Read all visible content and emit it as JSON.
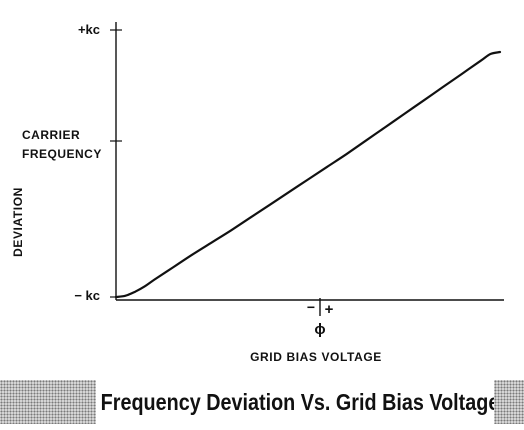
{
  "chart_data": {
    "type": "line",
    "title": "Frequency Deviation Vs. Grid Bias Voltage",
    "xlabel": "GRID BIAS VOLTAGE",
    "ylabel": "DEVIATION",
    "x_range": [
      -1,
      1
    ],
    "y_range": [
      -1,
      1
    ],
    "x_center_label": "ϕ",
    "x_minus_label": "−",
    "x_plus_label": "+",
    "y_tick_labels": {
      "top": "+kc",
      "middle_line1": "CARRIER",
      "middle_line2": "FREQUENCY",
      "bottom": "− kc"
    },
    "grid": false,
    "series": [
      {
        "x": [
          -1.0,
          -0.95,
          -0.9,
          -0.85,
          -0.8,
          -0.7,
          -0.6,
          -0.5,
          -0.4,
          -0.3,
          -0.2,
          -0.1,
          0.0,
          0.1,
          0.2,
          0.3,
          0.4,
          0.5,
          0.6,
          0.7,
          0.8,
          0.9,
          0.95,
          1.0
        ],
        "y": [
          -1.0,
          -0.99,
          -0.96,
          -0.92,
          -0.87,
          -0.775,
          -0.68,
          -0.59,
          -0.5,
          -0.405,
          -0.31,
          -0.215,
          -0.12,
          -0.025,
          0.07,
          0.17,
          0.27,
          0.37,
          0.47,
          0.57,
          0.67,
          0.77,
          0.82,
          0.835
        ]
      }
    ]
  }
}
